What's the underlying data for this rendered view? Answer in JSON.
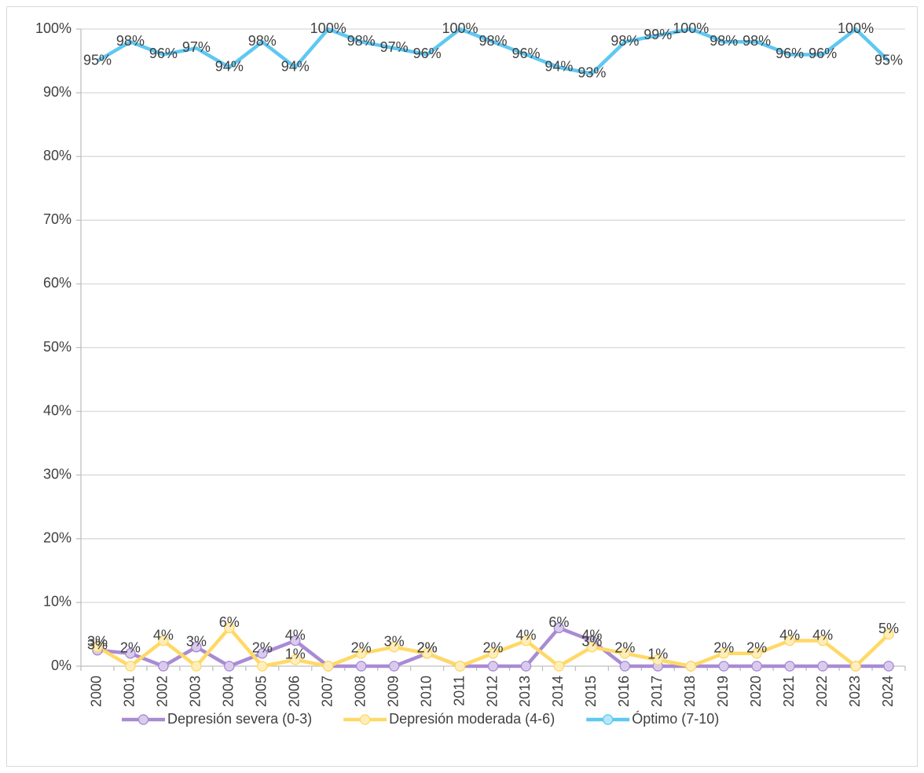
{
  "chart_data": {
    "type": "line",
    "categories": [
      "2000",
      "2001",
      "2002",
      "2003",
      "2004",
      "2005",
      "2006",
      "2007",
      "2008",
      "2009",
      "2010",
      "2011",
      "2012",
      "2013",
      "2014",
      "2015",
      "2016",
      "2017",
      "2018",
      "2019",
      "2020",
      "2021",
      "2022",
      "2023",
      "2024"
    ],
    "ylim": [
      0,
      100
    ],
    "yticks": [
      {
        "value": 0,
        "label": "0%"
      },
      {
        "value": 10,
        "label": "10%"
      },
      {
        "value": 20,
        "label": "20%"
      },
      {
        "value": 30,
        "label": "30%"
      },
      {
        "value": 40,
        "label": "40%"
      },
      {
        "value": 50,
        "label": "50%"
      },
      {
        "value": 60,
        "label": "60%"
      },
      {
        "value": 70,
        "label": "70%"
      },
      {
        "value": 80,
        "label": "80%"
      },
      {
        "value": 90,
        "label": "90%"
      },
      {
        "value": 100,
        "label": "100%"
      }
    ],
    "grid": true,
    "legend": "bottom",
    "series": [
      {
        "name": "Depresión severa (0-3)",
        "color": "#a98bd4",
        "marker": true,
        "values": [
          2.5,
          2,
          0,
          3,
          0,
          2,
          4,
          0,
          0,
          0,
          2,
          0,
          0,
          0,
          6,
          4,
          0,
          0,
          0,
          0,
          0,
          0,
          0,
          0,
          0
        ],
        "value_labels": [
          "3%",
          "2%",
          null,
          "3%",
          null,
          "2%",
          "4%",
          null,
          null,
          null,
          "2%",
          null,
          null,
          null,
          "6%",
          "4%",
          null,
          null,
          null,
          null,
          null,
          null,
          null,
          null,
          null
        ]
      },
      {
        "name": "Depresión moderada (4-6)",
        "color": "#ffd966",
        "marker": true,
        "values": [
          3,
          0,
          4,
          0,
          6,
          0,
          1,
          0,
          2,
          3,
          2,
          0,
          2,
          4,
          0,
          3,
          2,
          1,
          0,
          2,
          2,
          4,
          4,
          0,
          5
        ],
        "value_labels": [
          "3%",
          null,
          "4%",
          null,
          "6%",
          null,
          "1%",
          null,
          "2%",
          "3%",
          "2%",
          null,
          "2%",
          "4%",
          null,
          "3%",
          "2%",
          "1%",
          null,
          "2%",
          "2%",
          "4%",
          "4%",
          null,
          "5%"
        ]
      },
      {
        "name": "Óptimo (7-10)",
        "color": "#5ec8f2",
        "marker": false,
        "values": [
          95,
          98,
          96,
          97,
          94,
          98,
          94,
          100,
          98,
          97,
          96,
          100,
          98,
          96,
          94,
          93,
          98,
          99,
          100,
          98,
          98,
          96,
          96,
          100,
          95
        ],
        "value_labels": [
          "95%",
          "98%",
          "96%",
          "97%",
          "94%",
          "98%",
          "94%",
          "100%",
          "98%",
          "97%",
          "96%",
          "100%",
          "98%",
          "96%",
          "94%",
          "93%",
          "98%",
          "99%",
          "100%",
          "98%",
          "98%",
          "96%",
          "96%",
          "100%",
          "95%"
        ]
      }
    ]
  }
}
